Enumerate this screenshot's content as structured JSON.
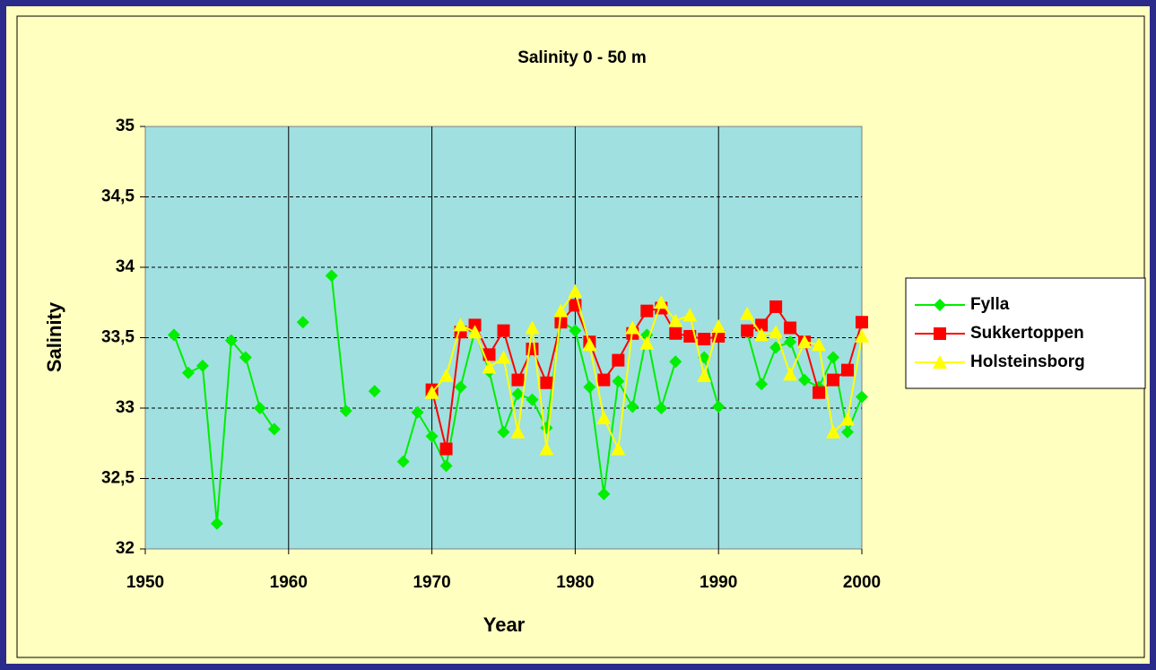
{
  "chart_data": {
    "type": "line",
    "title": "Salinity 0 - 50 m",
    "x_label": "Year",
    "y_label": "Salinity",
    "x": [
      1952,
      1953,
      1954,
      1955,
      1956,
      1957,
      1958,
      1959,
      1960,
      1961,
      1962,
      1963,
      1964,
      1965,
      1966,
      1967,
      1968,
      1969,
      1970,
      1971,
      1972,
      1973,
      1974,
      1975,
      1976,
      1977,
      1978,
      1979,
      1980,
      1981,
      1982,
      1983,
      1984,
      1985,
      1986,
      1987,
      1988,
      1989,
      1990,
      1991,
      1992,
      1993,
      1994,
      1995,
      1996,
      1997,
      1998,
      1999,
      2000
    ],
    "series": [
      {
        "name": "Fylla",
        "color": "#00ee00",
        "marker": "diamond",
        "values": [
          33.52,
          33.25,
          33.3,
          32.18,
          33.48,
          33.36,
          33.0,
          32.85,
          null,
          33.61,
          null,
          33.94,
          32.98,
          null,
          33.12,
          null,
          32.62,
          32.97,
          32.8,
          32.59,
          33.15,
          33.55,
          33.26,
          32.83,
          33.1,
          33.06,
          32.86,
          33.62,
          33.55,
          33.15,
          32.39,
          33.19,
          33.01,
          33.52,
          33.0,
          33.33,
          null,
          33.36,
          33.01,
          null,
          33.54,
          33.17,
          33.43,
          33.47,
          33.2,
          33.15,
          33.36,
          32.83,
          33.08
        ]
      },
      {
        "name": "Sukkertoppen",
        "color": "#ff0000",
        "marker": "square",
        "values": [
          null,
          null,
          null,
          null,
          null,
          null,
          null,
          null,
          null,
          null,
          null,
          null,
          null,
          null,
          null,
          null,
          null,
          null,
          33.13,
          32.71,
          33.54,
          33.59,
          33.38,
          33.55,
          33.2,
          33.42,
          33.18,
          33.61,
          33.73,
          33.47,
          33.2,
          33.34,
          33.53,
          33.69,
          33.71,
          33.53,
          33.51,
          33.49,
          33.51,
          null,
          33.55,
          33.59,
          33.72,
          33.57,
          33.47,
          33.11,
          33.2,
          33.27,
          33.61
        ]
      },
      {
        "name": "Holsteinsborg",
        "color": "#ffff00",
        "marker": "triangle",
        "values": [
          null,
          null,
          null,
          null,
          null,
          null,
          null,
          null,
          null,
          null,
          null,
          null,
          null,
          null,
          null,
          null,
          null,
          null,
          33.11,
          33.23,
          33.59,
          33.54,
          33.29,
          33.36,
          32.83,
          33.57,
          32.71,
          33.69,
          33.83,
          33.45,
          32.93,
          32.71,
          33.57,
          33.46,
          33.75,
          33.62,
          33.66,
          33.23,
          33.58,
          null,
          33.67,
          33.52,
          33.54,
          33.24,
          33.47,
          33.45,
          32.83,
          32.92,
          33.51
        ]
      }
    ],
    "xlim": [
      1950,
      2000
    ],
    "xticks": [
      1950,
      1960,
      1970,
      1980,
      1990,
      2000
    ],
    "ylim": [
      32,
      35
    ],
    "yticks": [
      32,
      {
        "value": 32.5,
        "label": "32,5"
      },
      33,
      {
        "value": 33.5,
        "label": "33,5"
      },
      34,
      {
        "value": 34.5,
        "label": "34,5"
      },
      35
    ],
    "grid": true,
    "legend": "right"
  }
}
